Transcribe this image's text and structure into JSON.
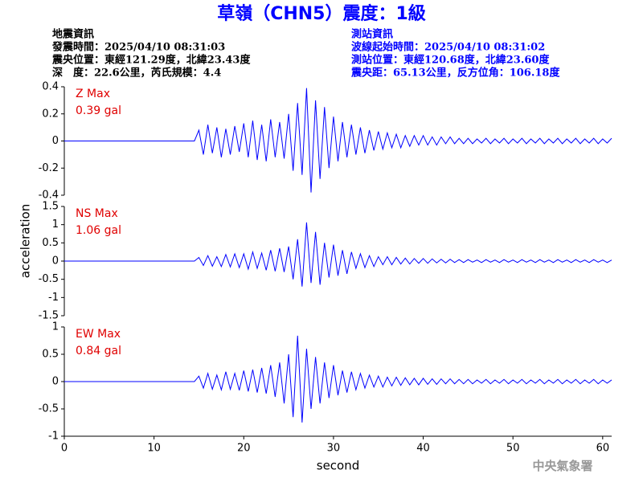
{
  "header": {
    "title": "草嶺（CHN5）震度：1級",
    "left": [
      "地震資訊",
      "發震時間：2025/04/10 08:31:03",
      "震央位置：東經121.29度，北緯23.43度",
      "深　度：22.6公里，芮氏規模：4.4"
    ],
    "right": [
      "測站資訊",
      "波線起始時間：2025/04/10 08:31:02",
      "測站位置：東經120.68度，北緯23.60度",
      "震央距：65.13公里，反方位角：106.18度"
    ]
  },
  "footer": "中央氣象署",
  "chart_data": [
    {
      "type": "line",
      "annotation": [
        "Z Max",
        "0.39 gal"
      ],
      "color": "#0000ff",
      "xlim": [
        0,
        61
      ],
      "ylim": [
        -0.4,
        0.4
      ],
      "yticks": [
        -0.4,
        -0.2,
        0,
        0.2,
        0.4
      ],
      "x": [
        0,
        5,
        10,
        14.5,
        15,
        15.5,
        16,
        16.5,
        17,
        17.5,
        18,
        18.5,
        19,
        19.5,
        20,
        20.5,
        21,
        21.5,
        22,
        22.5,
        23,
        23.5,
        24,
        24.5,
        25,
        25.5,
        26,
        26.5,
        27,
        27.5,
        28,
        28.5,
        29,
        29.5,
        30,
        30.5,
        31,
        31.5,
        32,
        32.5,
        33,
        33.5,
        34,
        34.5,
        35,
        35.5,
        36,
        36.5,
        37,
        37.5,
        38,
        38.5,
        39,
        39.5,
        40,
        40.5,
        41,
        41.5,
        42,
        42.5,
        43,
        43.5,
        44,
        44.5,
        45,
        45.5,
        46,
        46.5,
        47,
        47.5,
        48,
        48.5,
        49,
        49.5,
        50,
        50.5,
        51,
        51.5,
        52,
        52.5,
        53,
        53.5,
        54,
        54.5,
        55,
        55.5,
        56,
        56.5,
        57,
        57.5,
        58,
        58.5,
        59,
        59.5,
        60,
        60.5,
        61
      ],
      "values": [
        0,
        0,
        0,
        0,
        0.08,
        -0.1,
        0.12,
        -0.09,
        0.1,
        -0.12,
        0.09,
        -0.1,
        0.11,
        -0.08,
        0.13,
        -0.12,
        0.15,
        -0.14,
        0.12,
        -0.15,
        0.16,
        -0.12,
        0.14,
        -0.13,
        0.2,
        -0.22,
        0.28,
        -0.25,
        0.39,
        -0.38,
        0.3,
        -0.28,
        0.25,
        -0.2,
        0.18,
        -0.15,
        0.14,
        -0.12,
        0.12,
        -0.1,
        0.1,
        -0.09,
        0.08,
        -0.07,
        0.07,
        -0.06,
        0.06,
        -0.05,
        0.05,
        -0.05,
        0.04,
        -0.04,
        0.04,
        -0.03,
        0.04,
        -0.03,
        0.03,
        -0.03,
        0.03,
        -0.02,
        0.03,
        -0.02,
        0.02,
        -0.02,
        0.02,
        -0.02,
        0.015,
        -0.015,
        0.02,
        -0.02,
        0.015,
        -0.015,
        0.02,
        -0.02,
        0.015,
        -0.015,
        0.02,
        -0.02,
        0.015,
        -0.015,
        0.02,
        -0.02,
        0.015,
        -0.015,
        0.02,
        -0.02,
        0.015,
        -0.015,
        0.02,
        -0.02,
        0.015,
        -0.015,
        0.02,
        -0.02,
        0.015,
        -0.015,
        0.02
      ]
    },
    {
      "type": "line",
      "annotation": [
        "NS Max",
        "1.06 gal"
      ],
      "color": "#0000ff",
      "ylabel": "acceleration",
      "xlim": [
        0,
        61
      ],
      "ylim": [
        -1.5,
        1.5
      ],
      "yticks": [
        -1.5,
        -1,
        -0.5,
        0,
        0.5,
        1,
        1.5
      ],
      "x": [
        0,
        5,
        10,
        14.5,
        15,
        15.5,
        16,
        16.5,
        17,
        17.5,
        18,
        18.5,
        19,
        19.5,
        20,
        20.5,
        21,
        21.5,
        22,
        22.5,
        23,
        23.5,
        24,
        24.5,
        25,
        25.5,
        26,
        26.5,
        27,
        27.5,
        28,
        28.5,
        29,
        29.5,
        30,
        30.5,
        31,
        31.5,
        32,
        32.5,
        33,
        33.5,
        34,
        34.5,
        35,
        35.5,
        36,
        36.5,
        37,
        37.5,
        38,
        38.5,
        39,
        39.5,
        40,
        40.5,
        41,
        41.5,
        42,
        42.5,
        43,
        43.5,
        44,
        44.5,
        45,
        45.5,
        46,
        46.5,
        47,
        47.5,
        48,
        48.5,
        49,
        49.5,
        50,
        50.5,
        51,
        51.5,
        52,
        52.5,
        53,
        53.5,
        54,
        54.5,
        55,
        55.5,
        56,
        56.5,
        57,
        57.5,
        58,
        58.5,
        59,
        59.5,
        60,
        60.5,
        61
      ],
      "values": [
        0,
        0,
        0,
        0,
        0.1,
        -0.12,
        0.15,
        -0.14,
        0.12,
        -0.15,
        0.18,
        -0.16,
        0.2,
        -0.18,
        0.2,
        -0.22,
        0.25,
        -0.2,
        0.22,
        -0.25,
        0.3,
        -0.28,
        0.35,
        -0.3,
        0.4,
        -0.5,
        0.6,
        -0.7,
        1.06,
        -0.6,
        0.8,
        -0.65,
        0.5,
        -0.45,
        0.45,
        -0.4,
        0.3,
        -0.35,
        0.25,
        -0.2,
        0.2,
        -0.18,
        0.15,
        -0.15,
        0.12,
        -0.1,
        0.12,
        -0.1,
        0.1,
        -0.08,
        0.08,
        -0.08,
        0.07,
        -0.06,
        0.07,
        -0.06,
        0.06,
        -0.05,
        0.05,
        -0.05,
        0.05,
        -0.04,
        0.04,
        -0.04,
        0.04,
        -0.03,
        0.03,
        -0.04,
        0.04,
        -0.03,
        0.03,
        -0.04,
        0.04,
        -0.03,
        0.03,
        -0.04,
        0.04,
        -0.03,
        0.03,
        -0.04,
        0.04,
        -0.03,
        0.03,
        -0.04,
        0.04,
        -0.03,
        0.03,
        -0.04,
        0.04,
        -0.03,
        0.03,
        -0.04,
        0.04,
        -0.03,
        0.03,
        -0.04,
        0.03
      ]
    },
    {
      "type": "line",
      "annotation": [
        "EW Max",
        "0.84 gal"
      ],
      "color": "#0000ff",
      "xlabel": "second",
      "xlim": [
        0,
        61
      ],
      "ylim": [
        -1,
        1
      ],
      "yticks": [
        -1,
        -0.5,
        0,
        0.5,
        1
      ],
      "xticks": [
        0,
        10,
        20,
        30,
        40,
        50,
        60
      ],
      "x": [
        0,
        5,
        10,
        14.5,
        15,
        15.5,
        16,
        16.5,
        17,
        17.5,
        18,
        18.5,
        19,
        19.5,
        20,
        20.5,
        21,
        21.5,
        22,
        22.5,
        23,
        23.5,
        24,
        24.5,
        25,
        25.5,
        26,
        26.5,
        27,
        27.5,
        28,
        28.5,
        29,
        29.5,
        30,
        30.5,
        31,
        31.5,
        32,
        32.5,
        33,
        33.5,
        34,
        34.5,
        35,
        35.5,
        36,
        36.5,
        37,
        37.5,
        38,
        38.5,
        39,
        39.5,
        40,
        40.5,
        41,
        41.5,
        42,
        42.5,
        43,
        43.5,
        44,
        44.5,
        45,
        45.5,
        46,
        46.5,
        47,
        47.5,
        48,
        48.5,
        49,
        49.5,
        50,
        50.5,
        51,
        51.5,
        52,
        52.5,
        53,
        53.5,
        54,
        54.5,
        55,
        55.5,
        56,
        56.5,
        57,
        57.5,
        58,
        58.5,
        59,
        59.5,
        60,
        60.5,
        61
      ],
      "values": [
        0,
        0,
        0,
        0,
        0.1,
        -0.12,
        0.15,
        -0.14,
        0.12,
        -0.15,
        0.18,
        -0.14,
        0.15,
        -0.16,
        0.2,
        -0.18,
        0.22,
        -0.2,
        0.25,
        -0.22,
        0.3,
        -0.28,
        0.35,
        -0.4,
        0.5,
        -0.65,
        0.84,
        -0.75,
        0.6,
        -0.5,
        0.45,
        -0.4,
        0.35,
        -0.3,
        0.3,
        -0.25,
        0.2,
        -0.2,
        0.18,
        -0.15,
        0.15,
        -0.12,
        0.12,
        -0.1,
        0.1,
        -0.1,
        0.08,
        -0.08,
        0.08,
        -0.07,
        0.07,
        -0.06,
        0.06,
        -0.06,
        0.06,
        -0.05,
        0.05,
        -0.05,
        0.05,
        -0.04,
        0.05,
        -0.04,
        0.04,
        -0.04,
        0.04,
        -0.04,
        0.03,
        -0.03,
        0.04,
        -0.04,
        0.03,
        -0.03,
        0.04,
        -0.04,
        0.03,
        -0.03,
        0.04,
        -0.04,
        0.03,
        -0.03,
        0.04,
        -0.04,
        0.03,
        -0.03,
        0.04,
        -0.04,
        0.03,
        -0.03,
        0.04,
        -0.04,
        0.03,
        -0.03,
        0.04,
        -0.04,
        0.03,
        -0.03,
        0.03
      ]
    }
  ]
}
